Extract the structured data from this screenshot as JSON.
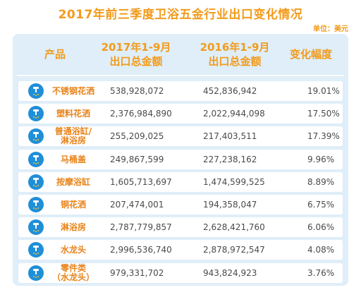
{
  "title": "2017年前三季度卫浴五金行业出口变化情况",
  "unit": "单位：美元",
  "headers": {
    "product": "产品",
    "col2017": "2017年1-9月\n出口总金额",
    "col2016": "2016年1-9月\n出口总金额",
    "change": "变化幅度"
  },
  "rows": [
    {
      "name": "不锈钢花洒",
      "v2017": "538,928,072",
      "v2016": "452,836,942",
      "change": "19.01%",
      "icon": "shower-head-icon"
    },
    {
      "name": "塑料花洒",
      "v2017": "2,376,984,890",
      "v2016": "2,022,944,098",
      "change": "17.50%",
      "icon": "shower-icon"
    },
    {
      "name": "普通浴缸/\n淋浴房",
      "v2017": "255,209,025",
      "v2016": "217,403,511",
      "change": "17.39%",
      "icon": "bathtub-icon"
    },
    {
      "name": "马桶盖",
      "v2017": "249,867,599",
      "v2016": "227,238,162",
      "change": "9.96%",
      "icon": "toilet-icon"
    },
    {
      "name": "按摩浴缸",
      "v2017": "1,605,713,697",
      "v2016": "1,474,599,525",
      "change": "8.89%",
      "icon": "massage-tub-icon"
    },
    {
      "name": "铜花洒",
      "v2017": "207,474,001",
      "v2016": "194,358,047",
      "change": "6.75%",
      "icon": "copper-shower-icon"
    },
    {
      "name": "淋浴房",
      "v2017": "2,787,779,857",
      "v2016": "2,628,421,760",
      "change": "6.06%",
      "icon": "shower-room-icon"
    },
    {
      "name": "水龙头",
      "v2017": "2,996,536,740",
      "v2016": "2,878,972,547",
      "change": "4.08%",
      "icon": "faucet-icon"
    },
    {
      "name": "零件类\n（水龙头）",
      "v2017": "979,331,702",
      "v2016": "943,824,923",
      "change": "3.76%",
      "icon": "faucet-part-icon"
    }
  ],
  "chart_data": {
    "type": "table",
    "title": "2017年前三季度卫浴五金行业出口变化情况",
    "unit": "单位：美元",
    "columns": [
      "产品",
      "2017年1-9月出口总金额",
      "2016年1-9月出口总金额",
      "变化幅度"
    ],
    "categories": [
      "不锈钢花洒",
      "塑料花洒",
      "普通浴缸/淋浴房",
      "马桶盖",
      "按摩浴缸",
      "铜花洒",
      "淋浴房",
      "水龙头",
      "零件类（水龙头）"
    ],
    "series": [
      {
        "name": "2017年1-9月出口总金额",
        "values": [
          538928072,
          2376984890,
          255209025,
          249867599,
          1605713697,
          207474001,
          2787779857,
          2996536740,
          979331702
        ]
      },
      {
        "name": "2016年1-9月出口总金额",
        "values": [
          452836942,
          2022944098,
          217403511,
          227238162,
          1474599525,
          194358047,
          2628421760,
          2878972547,
          943824923
        ]
      },
      {
        "name": "变化幅度",
        "values": [
          19.01,
          17.5,
          17.39,
          9.96,
          8.89,
          6.75,
          6.06,
          4.08,
          3.76
        ]
      }
    ]
  }
}
